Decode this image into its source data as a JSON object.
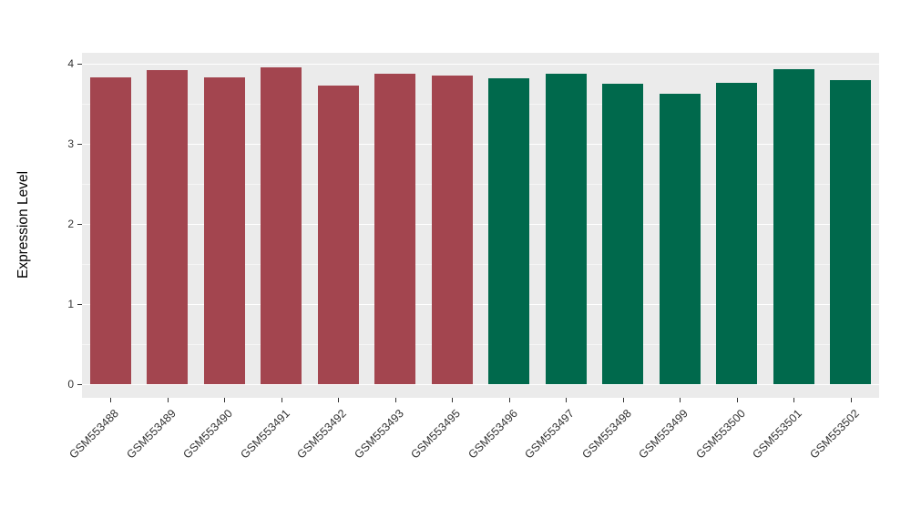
{
  "chart_data": {
    "type": "bar",
    "title": "",
    "xlabel": "",
    "ylabel": "Expression Level",
    "categories": [
      "GSM553488",
      "GSM553489",
      "GSM553490",
      "GSM553491",
      "GSM553492",
      "GSM553493",
      "GSM553495",
      "GSM553496",
      "GSM553497",
      "GSM553498",
      "GSM553499",
      "GSM553500",
      "GSM553501",
      "GSM553502"
    ],
    "values": [
      3.83,
      3.92,
      3.83,
      3.96,
      3.73,
      3.88,
      3.85,
      3.82,
      3.88,
      3.75,
      3.62,
      3.76,
      3.93,
      3.79
    ],
    "bar_colors": [
      "#A3454F",
      "#A3454F",
      "#A3454F",
      "#A3454F",
      "#A3454F",
      "#A3454F",
      "#A3454F",
      "#00694C",
      "#00694C",
      "#00694C",
      "#00694C",
      "#00694C",
      "#00694C",
      "#00694C"
    ],
    "groups": [
      {
        "color": "#A3454F",
        "categories": [
          "GSM553488",
          "GSM553489",
          "GSM553490",
          "GSM553491",
          "GSM553492",
          "GSM553493",
          "GSM553495"
        ]
      },
      {
        "color": "#00694C",
        "categories": [
          "GSM553496",
          "GSM553497",
          "GSM553498",
          "GSM553499",
          "GSM553500",
          "GSM553501",
          "GSM553502"
        ]
      }
    ],
    "ylim": [
      0,
      4
    ],
    "yticks": [
      0,
      1,
      2,
      3,
      4
    ],
    "yticks_minor": [
      0.5,
      1.5,
      2.5,
      3.5
    ],
    "grid": true,
    "legend": false,
    "panel_background": "#EBEBEB",
    "gridline_color": "#FFFFFF",
    "tick_label_color": "#333333",
    "x_label_rotation_deg": 45
  }
}
